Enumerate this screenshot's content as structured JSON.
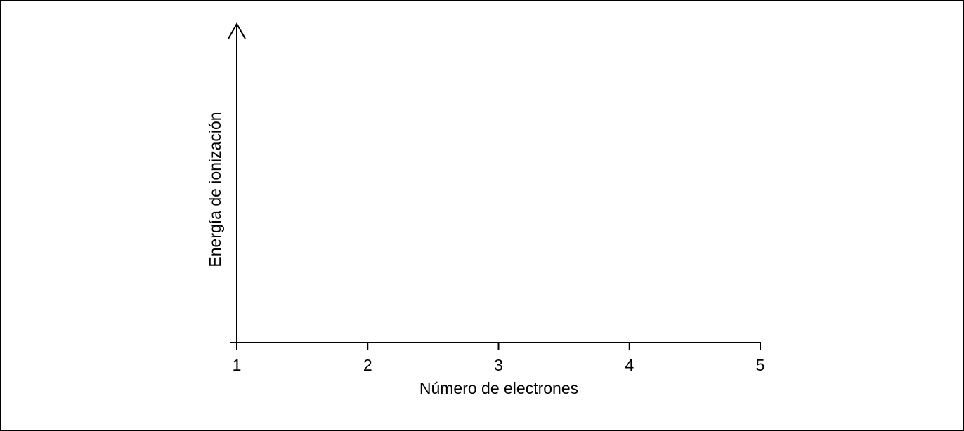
{
  "chart_data": {
    "type": "line",
    "title": "",
    "xlabel": "Número de electrones",
    "ylabel": "Energía de ionización",
    "x_ticks": [
      "1",
      "2",
      "3",
      "4",
      "5"
    ],
    "xlim": [
      1,
      5
    ],
    "series": [],
    "grid": false,
    "y_tick_labels_shown": false
  },
  "colors": {
    "axis": "#000000",
    "background": "#ffffff"
  }
}
